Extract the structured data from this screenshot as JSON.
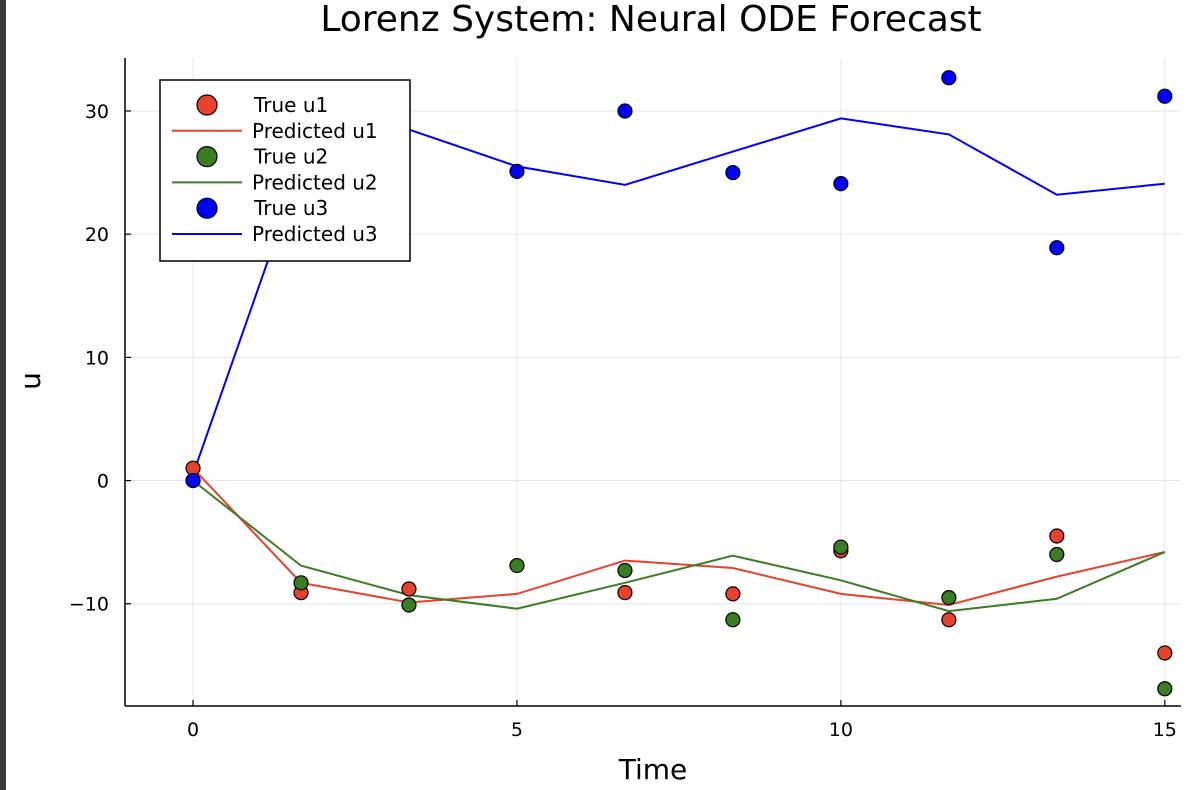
{
  "chart_data": {
    "type": "scatter",
    "title": "Lorenz System: Neural ODE Forecast",
    "xlabel": "Time",
    "ylabel": "u",
    "xlim": [
      -1.05,
      15.25
    ],
    "ylim": [
      -18.3,
      34.3
    ],
    "x_ticks": [
      0,
      5,
      10,
      15
    ],
    "x_tick_labels": [
      "0",
      "5",
      "10",
      "15"
    ],
    "y_ticks": [
      -10,
      0,
      10,
      20,
      30
    ],
    "y_tick_labels": [
      "−10",
      "0",
      "10",
      "20",
      "30"
    ],
    "grid": true,
    "legend_position": "top-left",
    "x": [
      0,
      1.667,
      3.333,
      5.0,
      6.667,
      8.333,
      10.0,
      11.667,
      13.333,
      15.0
    ],
    "series": [
      {
        "name": "True u1",
        "kind": "scatter",
        "color": "#e8412c",
        "values": [
          1.0,
          -9.1,
          -8.8,
          null,
          -9.1,
          -9.2,
          -5.7,
          -11.3,
          -4.5,
          -14.0
        ]
      },
      {
        "name": "Predicted u1",
        "kind": "line",
        "color": "#e8412c",
        "values": [
          1.0,
          -8.3,
          -9.9,
          -9.2,
          -6.5,
          -7.1,
          -9.2,
          -10.1,
          -7.8,
          -5.8
        ]
      },
      {
        "name": "True u2",
        "kind": "scatter",
        "color": "#3b7d23",
        "values": [
          0.0,
          -8.3,
          -10.1,
          -6.9,
          -7.3,
          -11.3,
          -5.4,
          -9.5,
          -6.0,
          -16.9
        ]
      },
      {
        "name": "Predicted u2",
        "kind": "line",
        "color": "#3b7d23",
        "values": [
          0.0,
          -6.9,
          -9.3,
          -10.4,
          -8.3,
          -6.1,
          -8.1,
          -10.6,
          -9.6,
          -5.8
        ]
      },
      {
        "name": "True u3",
        "kind": "scatter",
        "color": "#0000ff",
        "values": [
          0.0,
          null,
          null,
          25.1,
          30.0,
          25.0,
          24.1,
          32.7,
          18.9,
          31.2
        ]
      },
      {
        "name": "Predicted u3",
        "kind": "line",
        "color": "#0000ff",
        "values": [
          0.5,
          25.5,
          28.5,
          25.5,
          24.0,
          26.7,
          29.4,
          28.1,
          23.2,
          24.1
        ]
      }
    ]
  }
}
